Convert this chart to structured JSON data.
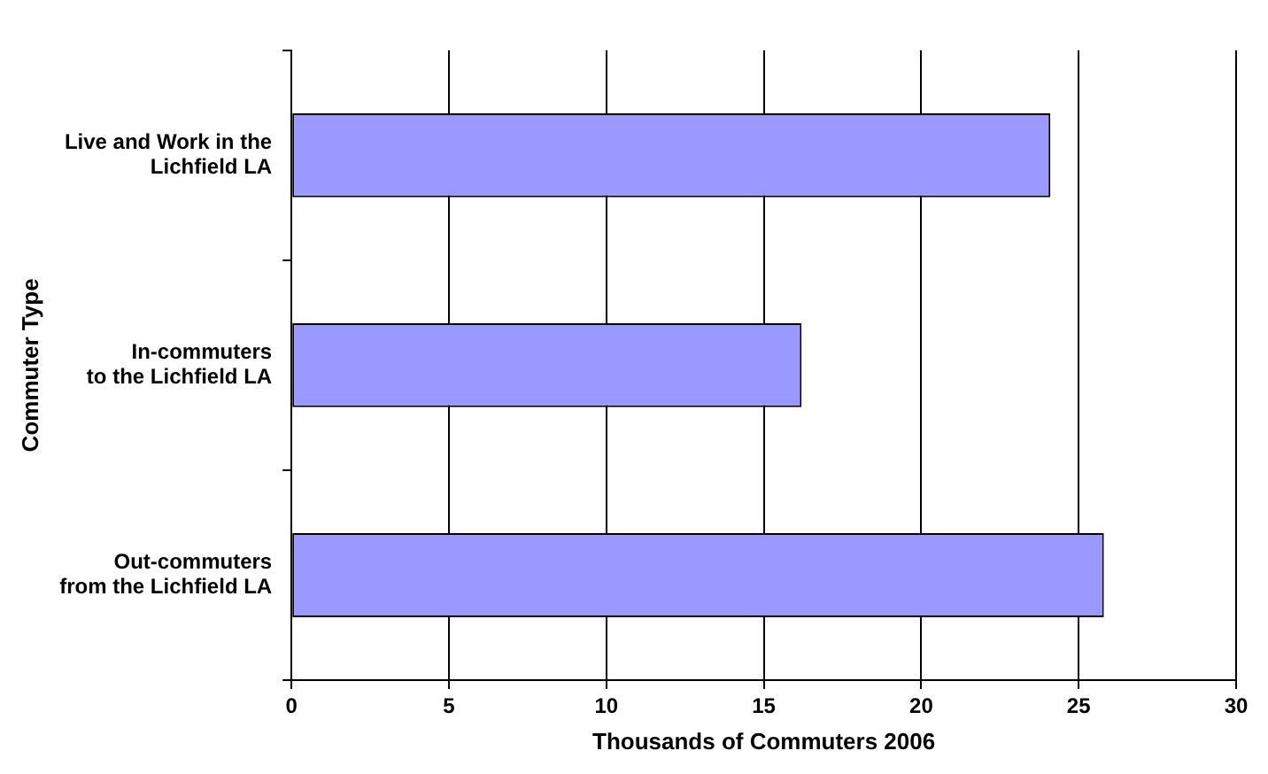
{
  "chart_data": {
    "type": "bar",
    "orientation": "horizontal",
    "xlabel": "Thousands of Commuters 2006",
    "ylabel": "Commuter Type",
    "categories": [
      "Live and Work in the\nLichfield LA",
      "In-commuters\nto the Lichfield LA",
      "Out-commuters\nfrom the Lichfield LA"
    ],
    "values": [
      24.1,
      16.2,
      25.8
    ],
    "color": "#9999ff",
    "xlim": [
      0,
      30
    ],
    "xticks": [
      0,
      5,
      10,
      15,
      20,
      25,
      30
    ],
    "grid": "x",
    "legend": false
  }
}
